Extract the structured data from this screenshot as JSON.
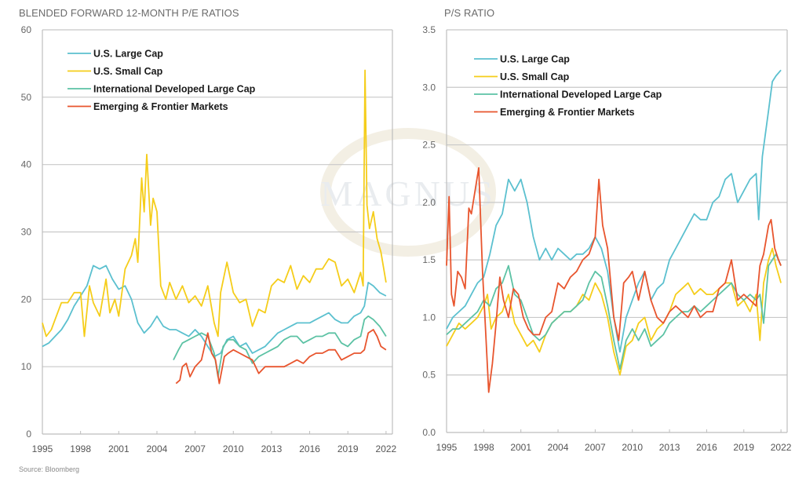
{
  "source": "Source: Bloomberg",
  "watermark": "MAGNUS",
  "colors": {
    "us_large_cap": "#5bc0cf",
    "us_small_cap": "#f5cd1a",
    "intl_dev_large_cap": "#5cc2a4",
    "emerging_frontier": "#e8552e",
    "grid": "#c8c8c8",
    "axis": "#bdbdbd"
  },
  "chart_data": [
    {
      "type": "line",
      "title": "BLENDED FORWARD 12-MONTH P/E RATIOS",
      "xlabel": "",
      "ylabel": "",
      "xlim": [
        1995,
        2022.5
      ],
      "ylim": [
        0,
        60
      ],
      "yticks": [
        "0",
        "10",
        "20",
        "30",
        "40",
        "50",
        "60"
      ],
      "ytick_values": [
        0,
        10,
        20,
        30,
        40,
        50,
        60
      ],
      "xticks": [
        "1995",
        "1998",
        "2001",
        "2004",
        "2007",
        "2010",
        "2013",
        "2016",
        "2019",
        "2022"
      ],
      "xtick_values": [
        1995,
        1998,
        2001,
        2004,
        2007,
        2010,
        2013,
        2016,
        2019,
        2022
      ],
      "grid": true,
      "legend": "top-left",
      "series": [
        {
          "name": "U.S. Large Cap",
          "key": "us_large_cap",
          "x": [
            1995,
            1995.5,
            1996,
            1996.5,
            1997,
            1997.5,
            1998,
            1998.5,
            1999,
            1999.5,
            2000,
            2000.5,
            2001,
            2001.5,
            2002,
            2002.5,
            2003,
            2003.5,
            2004,
            2004.5,
            2005,
            2005.5,
            2006,
            2006.5,
            2007,
            2007.5,
            2008,
            2008.5,
            2009,
            2009.5,
            2010,
            2010.5,
            2011,
            2011.5,
            2012,
            2012.5,
            2013,
            2013.5,
            2014,
            2014.5,
            2015,
            2015.5,
            2016,
            2016.5,
            2017,
            2017.5,
            2018,
            2018.5,
            2019,
            2019.5,
            2020,
            2020.3,
            2020.6,
            2021,
            2021.5,
            2022
          ],
          "values": [
            13,
            13.5,
            14.5,
            15.5,
            17,
            19,
            20.5,
            22,
            25,
            24.5,
            25,
            23,
            21.5,
            22,
            20,
            16.5,
            15,
            16,
            17.5,
            16,
            15.5,
            15.5,
            15,
            14.5,
            15.5,
            14.5,
            13,
            11.5,
            12,
            14,
            14.5,
            13,
            13.5,
            12,
            12.5,
            13,
            14,
            15,
            15.5,
            16,
            16.5,
            16.5,
            16.5,
            17,
            17.5,
            18,
            17,
            16.5,
            16.5,
            17.5,
            18,
            19,
            22.5,
            22,
            21,
            20.5
          ]
        },
        {
          "name": "U.S. Small Cap",
          "key": "us_small_cap",
          "x": [
            1995,
            1995.3,
            1995.7,
            1996,
            1996.5,
            1997,
            1997.5,
            1998,
            1998.3,
            1998.7,
            1999,
            1999.5,
            2000,
            2000.3,
            2000.7,
            2001,
            2001.5,
            2002,
            2002.3,
            2002.5,
            2002.8,
            2003,
            2003.2,
            2003.5,
            2003.7,
            2004,
            2004.3,
            2004.7,
            2005,
            2005.5,
            2006,
            2006.5,
            2007,
            2007.5,
            2008,
            2008.5,
            2008.8,
            2009,
            2009.5,
            2010,
            2010.5,
            2011,
            2011.5,
            2012,
            2012.5,
            2013,
            2013.5,
            2014,
            2014.5,
            2015,
            2015.5,
            2016,
            2016.5,
            2017,
            2017.5,
            2018,
            2018.5,
            2019,
            2019.5,
            2020,
            2020.2,
            2020.35,
            2020.5,
            2020.7,
            2021,
            2021.3,
            2021.6,
            2022
          ],
          "values": [
            16.5,
            14.5,
            15.5,
            17,
            19.5,
            19.5,
            21,
            21,
            14.5,
            22,
            19.5,
            17.5,
            23,
            18,
            20,
            17.5,
            24.5,
            26.5,
            29,
            25.5,
            38,
            33,
            41.5,
            31,
            35,
            33,
            22,
            20,
            22.5,
            20,
            22,
            19.5,
            20.5,
            19,
            22,
            16.5,
            14.5,
            21,
            25.5,
            21,
            19.5,
            20,
            16,
            18.5,
            18,
            22,
            23,
            22.5,
            25,
            21.5,
            23.5,
            22.5,
            24.5,
            24.5,
            26,
            25.5,
            22,
            23,
            21,
            24,
            22,
            54,
            34,
            30.5,
            33,
            29,
            27,
            22.5
          ]
        },
        {
          "name": "International Developed Large Cap",
          "key": "intl_dev_large_cap",
          "x": [
            2005.3,
            2005.7,
            2006,
            2006.5,
            2007,
            2007.5,
            2008,
            2008.5,
            2008.8,
            2009.2,
            2009.6,
            2010,
            2010.5,
            2011,
            2011.5,
            2012,
            2012.5,
            2013,
            2013.5,
            2014,
            2014.5,
            2015,
            2015.5,
            2016,
            2016.5,
            2017,
            2017.5,
            2018,
            2018.5,
            2019,
            2019.5,
            2020,
            2020.3,
            2020.6,
            2021,
            2021.5,
            2022
          ],
          "values": [
            11,
            12.5,
            13.5,
            14,
            14.5,
            15,
            14.5,
            12,
            8.5,
            13,
            14,
            14,
            13,
            12.5,
            10.5,
            11.5,
            12,
            12.5,
            13,
            14,
            14.5,
            14.5,
            13.5,
            14,
            14.5,
            14.5,
            15,
            15,
            13.5,
            13,
            14,
            14.5,
            17,
            17.5,
            17,
            16,
            14.5
          ]
        },
        {
          "name": "Emerging & Frontier Markets",
          "key": "emerging_frontier",
          "x": [
            2005.5,
            2005.8,
            2006,
            2006.3,
            2006.6,
            2007,
            2007.5,
            2007.8,
            2008,
            2008.3,
            2008.6,
            2008.9,
            2009.3,
            2009.6,
            2010,
            2010.5,
            2011,
            2011.5,
            2012,
            2012.5,
            2013,
            2013.5,
            2014,
            2014.5,
            2015,
            2015.5,
            2016,
            2016.5,
            2017,
            2017.5,
            2018,
            2018.5,
            2019,
            2019.5,
            2020,
            2020.3,
            2020.6,
            2021,
            2021.3,
            2021.6,
            2022
          ],
          "values": [
            7.5,
            8,
            10,
            10.5,
            8.5,
            10,
            11,
            13.5,
            15,
            12,
            11,
            7.5,
            11.5,
            12,
            12.5,
            12,
            11.5,
            11,
            9,
            10,
            10,
            10,
            10,
            10.5,
            11,
            10.5,
            11.5,
            12,
            12,
            12.5,
            12.5,
            11,
            11.5,
            12,
            12,
            12.5,
            15,
            15.5,
            14.5,
            13,
            12.5
          ]
        }
      ]
    },
    {
      "type": "line",
      "title": "P/S RATIO",
      "xlabel": "",
      "ylabel": "",
      "xlim": [
        1995,
        2022.5
      ],
      "ylim": [
        0,
        3.5
      ],
      "yticks": [
        "0.0",
        "0.5",
        "1.0",
        "1.5",
        "2.0",
        "2.5",
        "3.0",
        "3.5"
      ],
      "ytick_values": [
        0,
        0.5,
        1.0,
        1.5,
        2.0,
        2.5,
        3.0,
        3.5
      ],
      "xticks": [
        "1995",
        "1998",
        "2001",
        "2004",
        "2007",
        "2010",
        "2013",
        "2016",
        "2019",
        "2022"
      ],
      "xtick_values": [
        1995,
        1998,
        2001,
        2004,
        2007,
        2010,
        2013,
        2016,
        2019,
        2022
      ],
      "grid": true,
      "legend": "top-left",
      "series": [
        {
          "name": "U.S. Large Cap",
          "key": "us_large_cap",
          "x": [
            1995,
            1995.5,
            1996,
            1996.5,
            1997,
            1997.5,
            1998,
            1998.5,
            1999,
            1999.5,
            2000,
            2000.5,
            2001,
            2001.5,
            2002,
            2002.5,
            2003,
            2003.5,
            2004,
            2004.5,
            2005,
            2005.5,
            2006,
            2006.5,
            2007,
            2007.5,
            2008,
            2008.5,
            2009,
            2009.5,
            2010,
            2010.5,
            2011,
            2011.5,
            2012,
            2012.5,
            2013,
            2013.5,
            2014,
            2014.5,
            2015,
            2015.5,
            2016,
            2016.5,
            2017,
            2017.5,
            2018,
            2018.5,
            2019,
            2019.5,
            2020,
            2020.2,
            2020.5,
            2021,
            2021.3,
            2021.6,
            2022
          ],
          "values": [
            0.9,
            1.0,
            1.05,
            1.1,
            1.2,
            1.3,
            1.35,
            1.55,
            1.8,
            1.9,
            2.2,
            2.1,
            2.2,
            2.0,
            1.7,
            1.5,
            1.6,
            1.5,
            1.6,
            1.55,
            1.5,
            1.55,
            1.55,
            1.6,
            1.7,
            1.6,
            1.4,
            1.0,
            0.7,
            1.0,
            1.15,
            1.3,
            1.4,
            1.15,
            1.25,
            1.3,
            1.5,
            1.6,
            1.7,
            1.8,
            1.9,
            1.85,
            1.85,
            2.0,
            2.05,
            2.2,
            2.25,
            2.0,
            2.1,
            2.2,
            2.25,
            1.85,
            2.4,
            2.8,
            3.05,
            3.1,
            3.15
          ]
        },
        {
          "name": "U.S. Small Cap",
          "key": "us_small_cap",
          "x": [
            1995,
            1995.5,
            1996,
            1996.5,
            1997,
            1997.5,
            1998,
            1998.3,
            1998.6,
            1999,
            1999.5,
            2000,
            2000.5,
            2001,
            2001.5,
            2002,
            2002.5,
            2003,
            2003.5,
            2004,
            2004.5,
            2005,
            2005.5,
            2006,
            2006.5,
            2007,
            2007.5,
            2008,
            2008.5,
            2009,
            2009.5,
            2010,
            2010.5,
            2011,
            2011.5,
            2012,
            2012.5,
            2013,
            2013.5,
            2014,
            2014.5,
            2015,
            2015.5,
            2016,
            2016.5,
            2017,
            2017.5,
            2018,
            2018.5,
            2019,
            2019.5,
            2020,
            2020.3,
            2020.6,
            2021,
            2021.3,
            2021.6,
            2022
          ],
          "values": [
            0.75,
            0.85,
            0.95,
            0.9,
            0.95,
            1.0,
            1.1,
            1.2,
            0.9,
            1.0,
            1.05,
            1.2,
            0.95,
            0.85,
            0.75,
            0.8,
            0.7,
            0.85,
            0.95,
            1.0,
            1.05,
            1.05,
            1.1,
            1.2,
            1.15,
            1.3,
            1.2,
            1.0,
            0.7,
            0.5,
            0.75,
            0.8,
            0.95,
            1.0,
            0.8,
            0.9,
            0.95,
            1.05,
            1.2,
            1.25,
            1.3,
            1.2,
            1.25,
            1.2,
            1.2,
            1.25,
            1.3,
            1.3,
            1.1,
            1.15,
            1.05,
            1.2,
            0.8,
            1.3,
            1.5,
            1.6,
            1.45,
            1.3
          ]
        },
        {
          "name": "International Developed Large Cap",
          "key": "intl_dev_large_cap",
          "x": [
            1995,
            1995.5,
            1996,
            1996.5,
            1997,
            1997.5,
            1998,
            1998.5,
            1999,
            1999.5,
            2000,
            2000.5,
            2001,
            2001.5,
            2002,
            2002.5,
            2003,
            2003.5,
            2004,
            2004.5,
            2005,
            2005.5,
            2006,
            2006.5,
            2007,
            2007.5,
            2008,
            2008.5,
            2009,
            2009.5,
            2010,
            2010.5,
            2011,
            2011.5,
            2012,
            2012.5,
            2013,
            2013.5,
            2014,
            2014.5,
            2015,
            2015.5,
            2016,
            2016.5,
            2017,
            2017.5,
            2018,
            2018.5,
            2019,
            2019.5,
            2020,
            2020.3,
            2020.6,
            2021,
            2021.3,
            2021.6,
            2022
          ],
          "values": [
            0.85,
            0.9,
            0.9,
            0.95,
            1.0,
            1.05,
            1.15,
            1.1,
            1.25,
            1.3,
            1.45,
            1.2,
            1.15,
            1.0,
            0.85,
            0.8,
            0.85,
            0.95,
            1.0,
            1.05,
            1.05,
            1.1,
            1.15,
            1.3,
            1.4,
            1.35,
            1.1,
            0.8,
            0.55,
            0.8,
            0.9,
            0.8,
            0.9,
            0.75,
            0.8,
            0.85,
            0.95,
            1.0,
            1.05,
            1.05,
            1.1,
            1.05,
            1.1,
            1.15,
            1.2,
            1.25,
            1.3,
            1.2,
            1.15,
            1.2,
            1.15,
            1.2,
            0.95,
            1.45,
            1.5,
            1.55,
            1.45
          ]
        },
        {
          "name": "Emerging & Frontier Markets",
          "key": "emerging_frontier",
          "x": [
            1995,
            1995.2,
            1995.4,
            1995.6,
            1995.9,
            1996.2,
            1996.5,
            1996.8,
            1997,
            1997.3,
            1997.6,
            1997.9,
            1998.1,
            1998.4,
            1998.7,
            1999,
            1999.3,
            1999.6,
            2000,
            2000.4,
            2000.8,
            2001.2,
            2001.6,
            2002,
            2002.5,
            2003,
            2003.5,
            2004,
            2004.5,
            2005,
            2005.5,
            2006,
            2006.5,
            2007,
            2007.3,
            2007.6,
            2008,
            2008.5,
            2008.9,
            2009.3,
            2009.7,
            2010,
            2010.5,
            2011,
            2011.5,
            2012,
            2012.5,
            2013,
            2013.5,
            2014,
            2014.5,
            2015,
            2015.5,
            2016,
            2016.5,
            2017,
            2017.5,
            2018,
            2018.5,
            2019,
            2019.5,
            2020,
            2020.3,
            2020.6,
            2021,
            2021.2,
            2021.5,
            2021.8,
            2022
          ],
          "values": [
            1.45,
            2.05,
            1.2,
            1.1,
            1.4,
            1.35,
            1.25,
            1.95,
            1.9,
            2.1,
            2.3,
            1.4,
            1.0,
            0.35,
            0.6,
            0.95,
            1.35,
            1.15,
            1.0,
            1.25,
            1.2,
            1.0,
            0.9,
            0.85,
            0.85,
            1.0,
            1.05,
            1.3,
            1.25,
            1.35,
            1.4,
            1.5,
            1.55,
            1.7,
            2.2,
            1.8,
            1.6,
            1.0,
            0.8,
            1.3,
            1.35,
            1.4,
            1.15,
            1.4,
            1.15,
            1.0,
            0.95,
            1.05,
            1.1,
            1.05,
            1.0,
            1.1,
            1.0,
            1.05,
            1.05,
            1.25,
            1.3,
            1.5,
            1.15,
            1.2,
            1.15,
            1.1,
            1.45,
            1.55,
            1.8,
            1.85,
            1.6,
            1.5,
            1.45
          ]
        }
      ]
    }
  ]
}
